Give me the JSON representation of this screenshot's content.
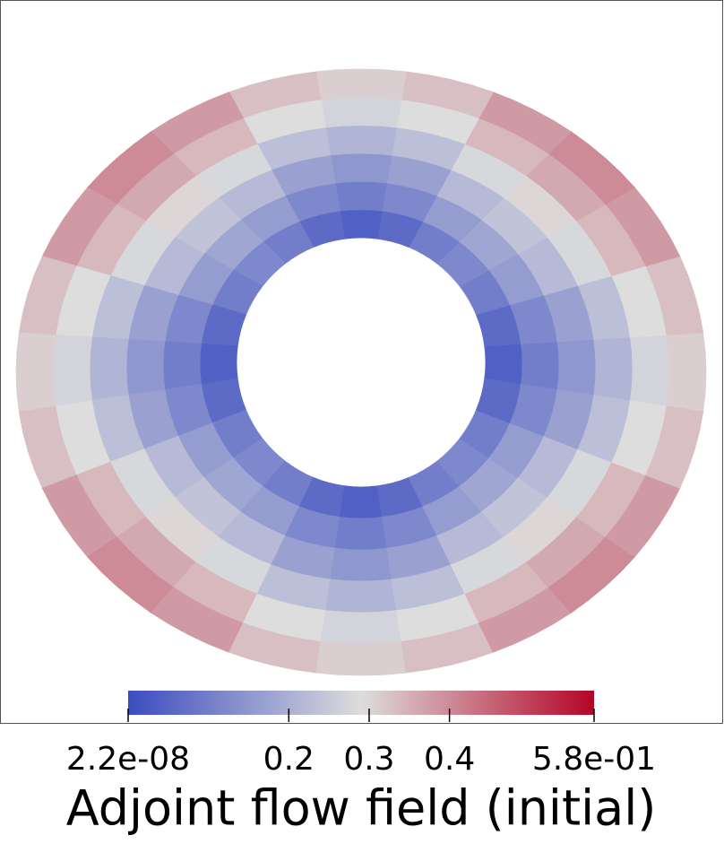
{
  "chart_data": {
    "type": "field",
    "title": "Adjoint flow field (initial)",
    "field": [
      [
        0.04,
        0.06,
        0.1,
        0.12,
        0.1,
        0.06,
        0.04,
        0.06,
        0.1,
        0.12,
        0.1,
        0.06,
        0.04,
        0.06,
        0.1,
        0.12,
        0.1,
        0.06,
        0.04,
        0.06,
        0.1,
        0.12,
        0.1,
        0.06
      ],
      [
        0.1,
        0.12,
        0.16,
        0.18,
        0.16,
        0.12,
        0.1,
        0.12,
        0.16,
        0.18,
        0.16,
        0.12,
        0.1,
        0.12,
        0.16,
        0.18,
        0.16,
        0.12,
        0.1,
        0.12,
        0.16,
        0.18,
        0.16,
        0.12
      ],
      [
        0.15,
        0.17,
        0.22,
        0.24,
        0.22,
        0.17,
        0.15,
        0.17,
        0.22,
        0.24,
        0.22,
        0.17,
        0.15,
        0.17,
        0.22,
        0.24,
        0.22,
        0.17,
        0.15,
        0.17,
        0.22,
        0.24,
        0.22,
        0.17
      ],
      [
        0.21,
        0.23,
        0.28,
        0.3,
        0.28,
        0.23,
        0.21,
        0.23,
        0.28,
        0.3,
        0.28,
        0.23,
        0.21,
        0.23,
        0.28,
        0.3,
        0.28,
        0.23,
        0.21,
        0.23,
        0.28,
        0.3,
        0.28,
        0.23
      ],
      [
        0.27,
        0.29,
        0.34,
        0.36,
        0.34,
        0.29,
        0.27,
        0.29,
        0.34,
        0.36,
        0.34,
        0.29,
        0.27,
        0.29,
        0.34,
        0.36,
        0.34,
        0.29,
        0.27,
        0.29,
        0.34,
        0.36,
        0.34,
        0.29
      ],
      [
        0.31,
        0.33,
        0.38,
        0.4,
        0.38,
        0.33,
        0.31,
        0.33,
        0.38,
        0.4,
        0.38,
        0.33,
        0.31,
        0.33,
        0.38,
        0.4,
        0.38,
        0.33,
        0.31,
        0.33,
        0.38,
        0.4,
        0.38,
        0.33
      ]
    ],
    "colormap": [
      "#3b4cc0",
      "#dddddd",
      "#b40426"
    ],
    "clim": [
      2.2e-08,
      0.58
    ],
    "cticks": [
      {
        "value": 2.2e-08,
        "label": "2.2e-08"
      },
      0.2,
      0.3,
      0.4,
      {
        "value": 0.58,
        "label": "5.8e-01"
      }
    ]
  }
}
